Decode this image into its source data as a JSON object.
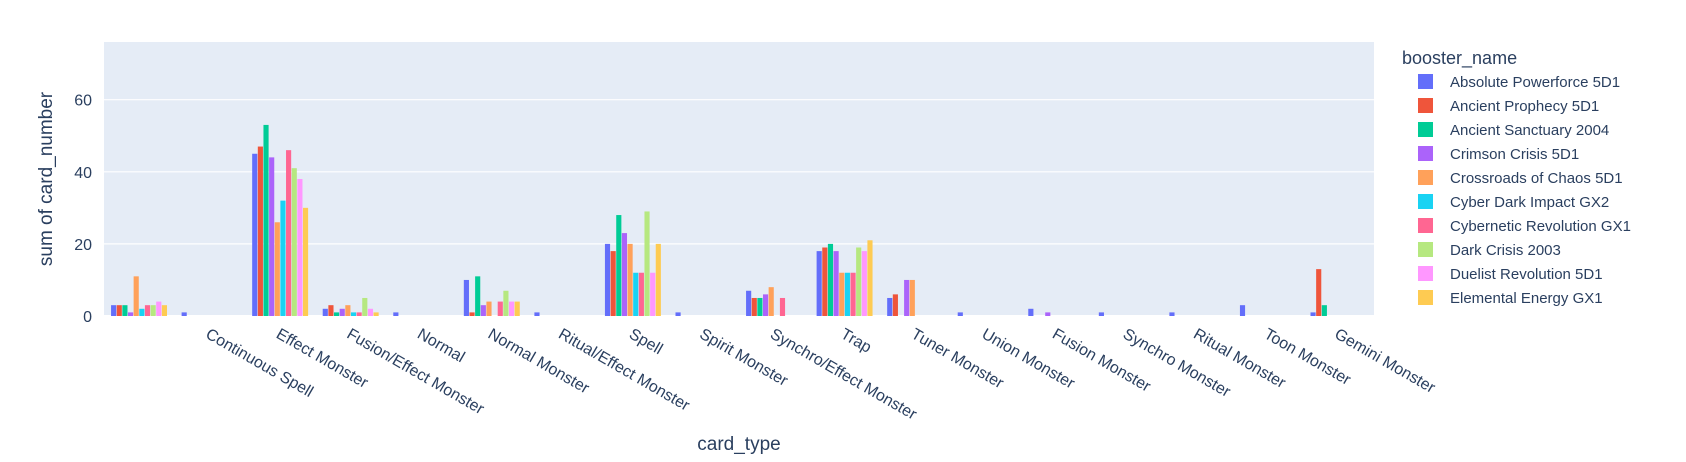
{
  "chart_data": {
    "type": "bar",
    "barmode": "group",
    "xlabel": "card_type",
    "ylabel": "sum of card_number",
    "ylim": [
      0,
      76
    ],
    "yticks": [
      0,
      20,
      40,
      60
    ],
    "grid": true,
    "legend_title": "booster_name",
    "legend_position": "right",
    "categories": [
      "",
      "Continuous Spell",
      "Effect Monster",
      "Fusion/Effect Monster",
      "Normal",
      "Normal Monster",
      "Ritual/Effect Monster",
      "Spell",
      "Spirit Monster",
      "Synchro/Effect Monster",
      "Trap",
      "Tuner Monster",
      "Union Monster",
      "Fusion Monster",
      "Synchro Monster",
      "Ritual Monster",
      "Toon Monster",
      "Gemini Monster"
    ],
    "series": [
      {
        "name": "Absolute Powerforce 5D1",
        "color": "#636efa",
        "values": [
          3,
          1,
          45,
          2,
          1,
          10,
          1,
          20,
          1,
          7,
          18,
          5,
          1,
          2,
          1,
          1,
          3,
          1
        ]
      },
      {
        "name": "Ancient Prophecy 5D1",
        "color": "#EF553B",
        "values": [
          3,
          0,
          47,
          3,
          0,
          1,
          0,
          18,
          0,
          5,
          19,
          6,
          0,
          0,
          0,
          0,
          0,
          13
        ]
      },
      {
        "name": "Ancient Sanctuary 2004",
        "color": "#00cc96",
        "values": [
          3,
          0,
          53,
          1,
          0,
          11,
          0,
          28,
          0,
          5,
          20,
          0,
          0,
          0,
          0,
          0,
          0,
          3
        ]
      },
      {
        "name": "Crimson Crisis 5D1",
        "color": "#ab63fa",
        "values": [
          1,
          0,
          44,
          2,
          0,
          3,
          0,
          23,
          0,
          6,
          18,
          10,
          0,
          1,
          0,
          0,
          0,
          0
        ]
      },
      {
        "name": "Crossroads of Chaos 5D1",
        "color": "#FFA15A",
        "values": [
          11,
          0,
          26,
          3,
          0,
          4,
          0,
          20,
          0,
          8,
          12,
          10,
          0,
          0,
          0,
          0,
          0,
          0
        ]
      },
      {
        "name": "Cyber Dark Impact GX2",
        "color": "#19d3f3",
        "values": [
          2,
          0,
          32,
          1,
          0,
          0,
          0,
          12,
          0,
          0,
          12,
          0,
          0,
          0,
          0,
          0,
          0,
          0
        ]
      },
      {
        "name": "Cybernetic Revolution GX1",
        "color": "#FF6692",
        "values": [
          3,
          0,
          46,
          1,
          0,
          4,
          0,
          12,
          0,
          5,
          12,
          0,
          0,
          0,
          0,
          0,
          0,
          0
        ]
      },
      {
        "name": "Dark Crisis 2003",
        "color": "#B6E880",
        "values": [
          3,
          0,
          41,
          5,
          0,
          7,
          0,
          29,
          0,
          0,
          19,
          0,
          0,
          0,
          0,
          0,
          0,
          0
        ]
      },
      {
        "name": "Duelist Revolution 5D1",
        "color": "#FF97FF",
        "values": [
          4,
          0,
          38,
          2,
          0,
          4,
          0,
          12,
          0,
          0,
          18,
          0,
          0,
          0,
          0,
          0,
          0,
          0
        ]
      },
      {
        "name": "Elemental Energy GX1",
        "color": "#FECB52",
        "values": [
          3,
          0,
          30,
          1,
          0,
          4,
          0,
          20,
          0,
          0,
          21,
          0,
          0,
          0,
          0,
          0,
          0,
          0
        ]
      }
    ]
  }
}
